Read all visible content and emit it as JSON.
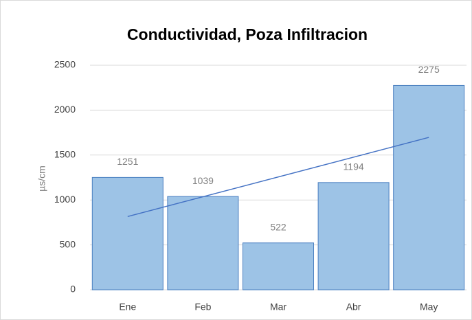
{
  "chart_data": {
    "type": "bar",
    "title": "Conductividad,  Poza Infiltracion",
    "ylabel": "µs/cm",
    "categories": [
      "Ene",
      "Feb",
      "Mar",
      "Abr",
      "May"
    ],
    "values": [
      1251,
      1039,
      522,
      1194,
      2275
    ],
    "color": "#9dc3e6",
    "edge_color": "#4a7fc0",
    "trendline": "linear",
    "trendline_color": "#4472c4",
    "ylim": [
      0,
      2500
    ],
    "yticks": [
      0,
      500,
      1000,
      1500,
      2000,
      2500
    ],
    "grid": true
  }
}
